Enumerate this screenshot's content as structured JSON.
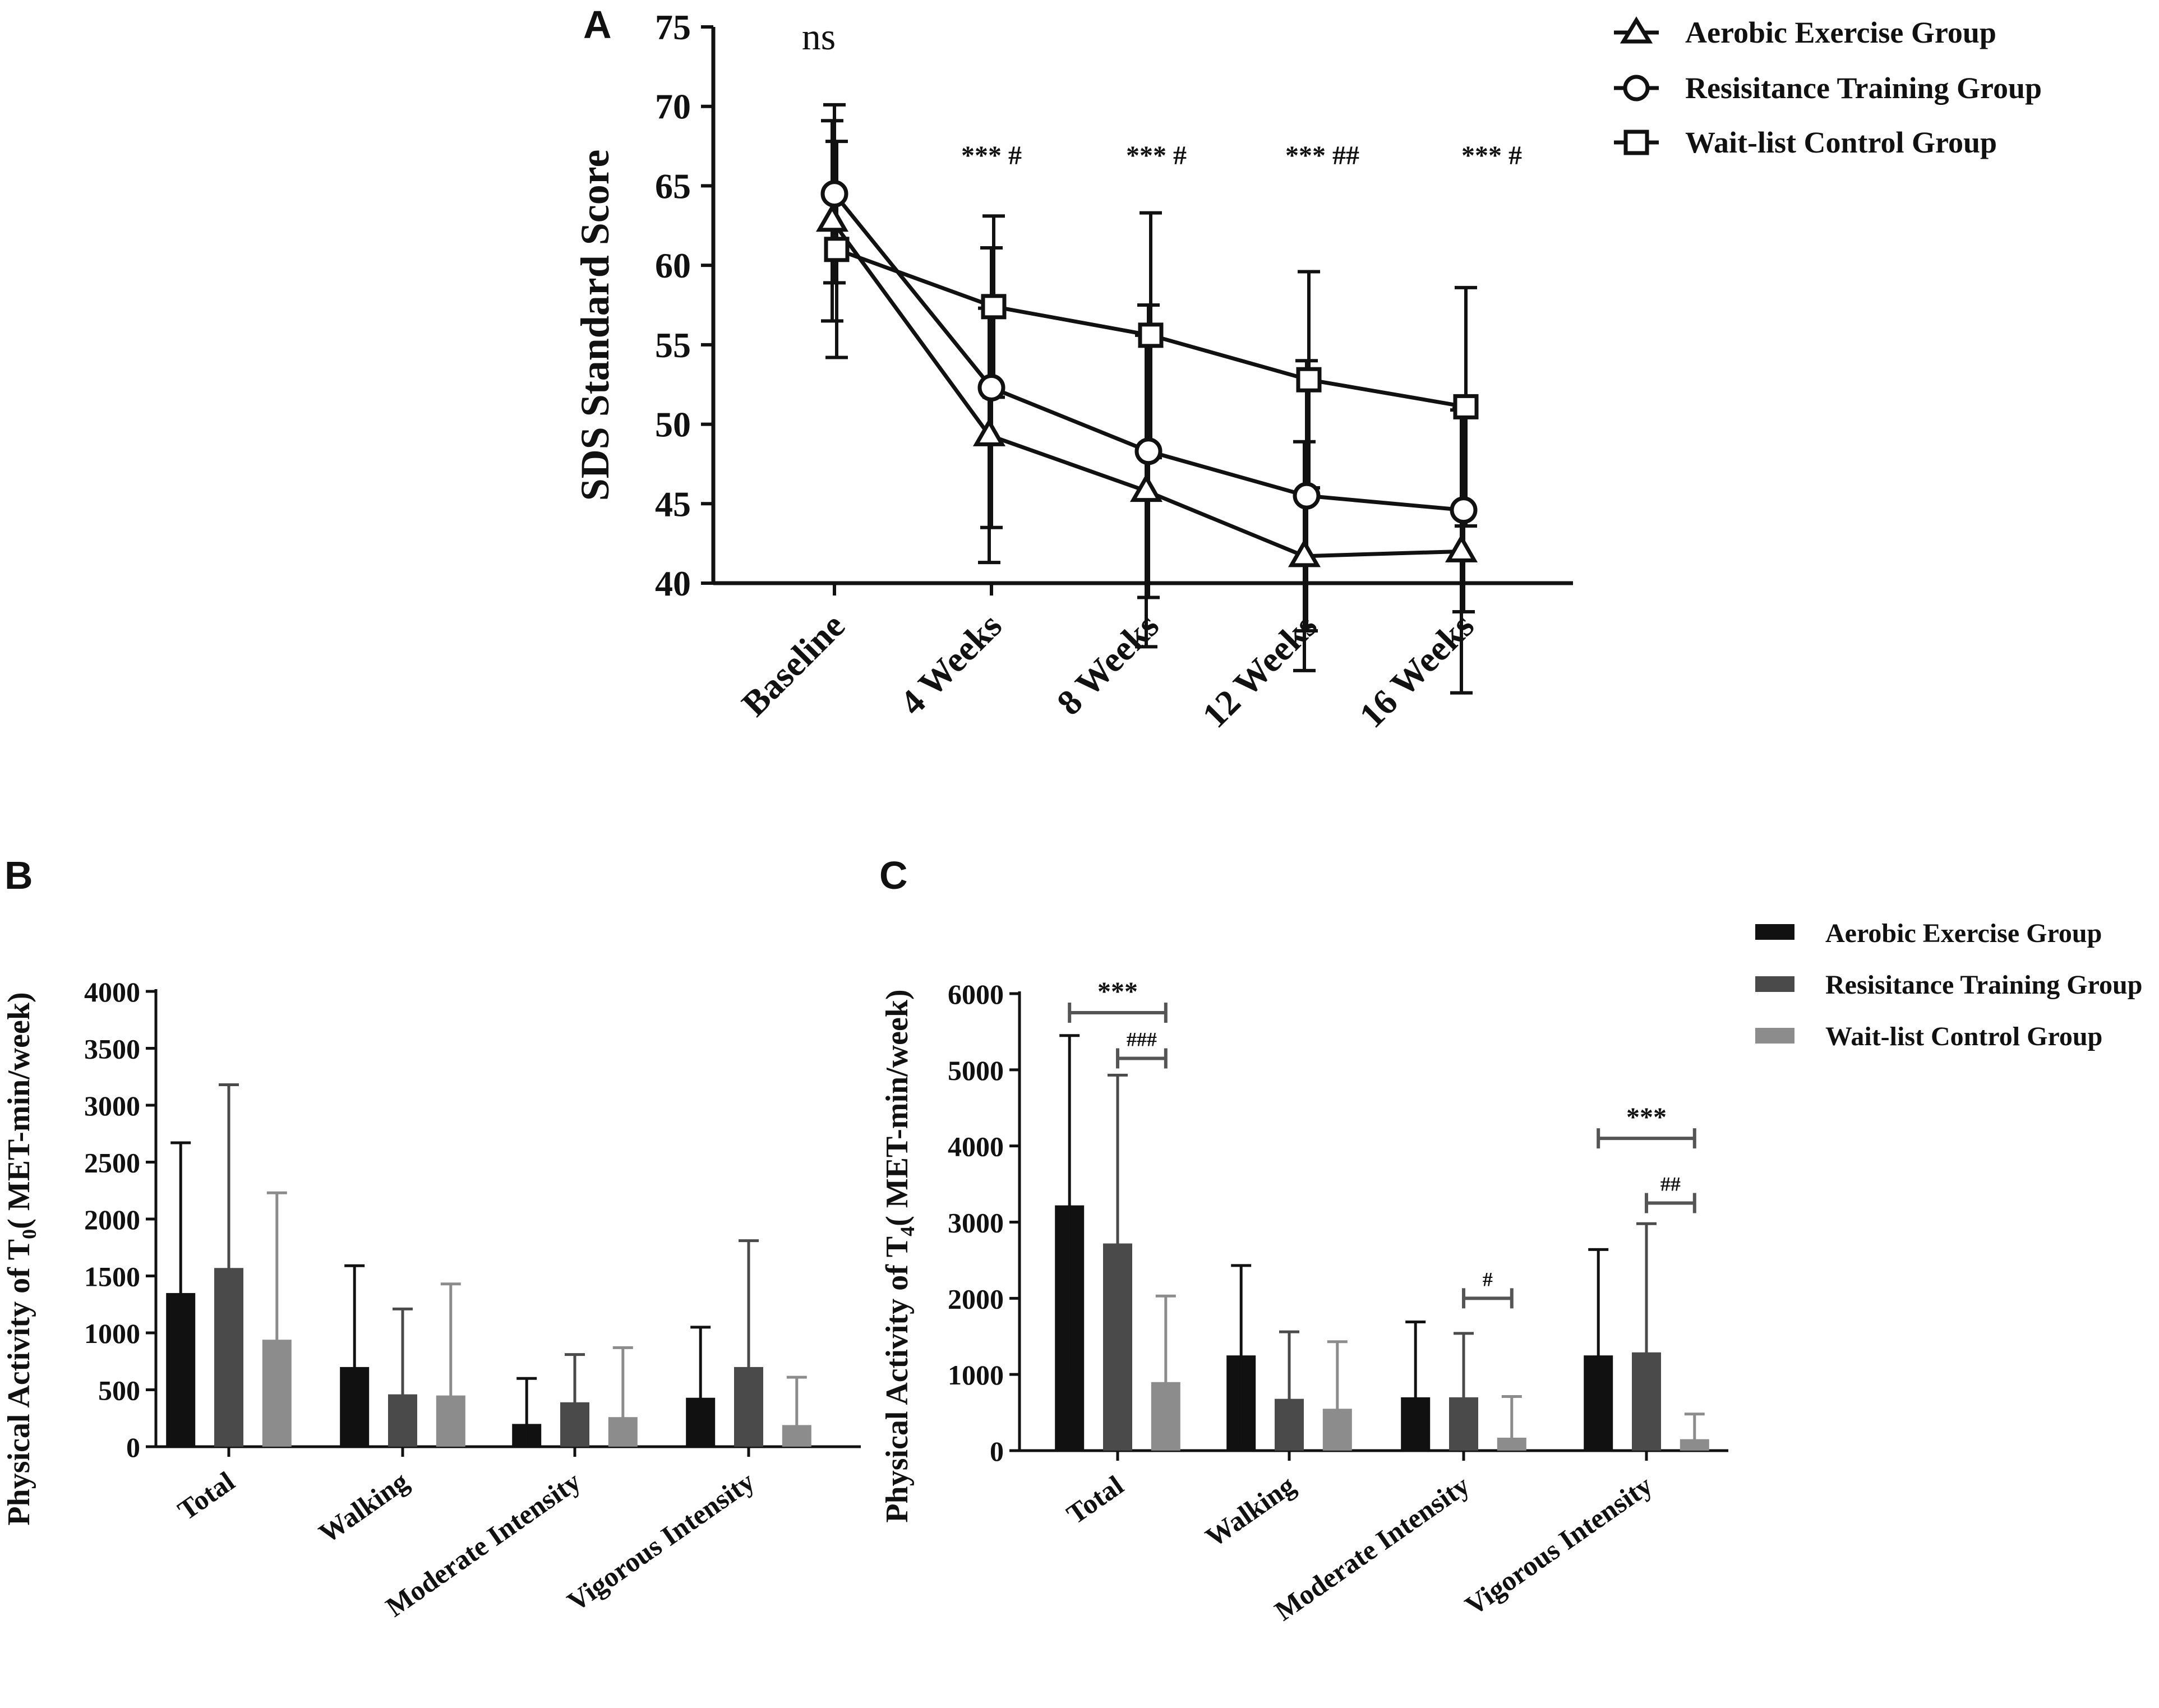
{
  "chart_data": [
    {
      "panel": "A",
      "type": "line",
      "ylabel": "SDS Standard Score",
      "xlabel": "",
      "ylim": [
        40,
        75
      ],
      "yticks": [
        "40",
        "45",
        "50",
        "55",
        "60",
        "65",
        "70",
        "75"
      ],
      "categories": [
        "Baseline",
        "4 Weeks",
        "8 Weeks",
        "12 Weeks",
        "16 Weeks"
      ],
      "series": [
        {
          "name": "Aerobic Exercise Group",
          "marker": "triangle",
          "values": [
            62.8,
            49.3,
            45.8,
            41.7,
            42.0
          ],
          "errors": [
            6.3,
            8.0,
            9.8,
            7.2,
            8.9
          ]
        },
        {
          "name": "Resisitance Training Group",
          "marker": "circle",
          "values": [
            64.5,
            52.3,
            48.3,
            45.5,
            44.6
          ],
          "errors": [
            5.6,
            8.8,
            9.2,
            8.5,
            6.4
          ]
        },
        {
          "name": "Wait-list Control Group",
          "marker": "square",
          "values": [
            61.0,
            57.4,
            55.6,
            52.8,
            51.1
          ],
          "errors": [
            6.8,
            5.7,
            7.7,
            6.8,
            7.5
          ]
        }
      ],
      "annotations": [
        "ns",
        "*** #",
        "*** #",
        "*** ##",
        "*** #"
      ]
    },
    {
      "panel": "B",
      "type": "bar",
      "ylabel": "Physical Activity of T",
      "ylabel_sub": "0",
      "ylabel_unit": "( MET-min/week)",
      "ylim": [
        0,
        4000
      ],
      "yticks": [
        "0",
        "500",
        "1000",
        "1500",
        "2000",
        "2500",
        "3000",
        "3500",
        "4000"
      ],
      "categories": [
        "Total",
        "Walking",
        "Moderate Intensity",
        "Vigorous Intensity"
      ],
      "series": [
        {
          "name": "Aerobic Exercise Group",
          "color": "#111111",
          "values": [
            1350,
            700,
            200,
            430
          ],
          "errors": [
            1320,
            890,
            400,
            620
          ]
        },
        {
          "name": "Resisitance Training Group",
          "color": "#4a4a4a",
          "values": [
            1570,
            460,
            390,
            700
          ],
          "errors": [
            1610,
            750,
            420,
            1110
          ]
        },
        {
          "name": "Wait-list Control Group",
          "color": "#8c8c8c",
          "values": [
            940,
            450,
            260,
            190
          ],
          "errors": [
            1290,
            980,
            610,
            420
          ]
        }
      ]
    },
    {
      "panel": "C",
      "type": "bar",
      "ylabel": "Physical Activity of T",
      "ylabel_sub": "4",
      "ylabel_unit": "( MET-min/week)",
      "ylim": [
        0,
        6000
      ],
      "yticks": [
        "0",
        "1000",
        "2000",
        "3000",
        "4000",
        "5000",
        "6000"
      ],
      "categories": [
        "Total",
        "Walking",
        "Moderate Intensity",
        "Vigorous Intensity"
      ],
      "series": [
        {
          "name": "Aerobic Exercise Group",
          "color": "#111111",
          "values": [
            3220,
            1250,
            700,
            1250
          ],
          "errors": [
            2230,
            1180,
            990,
            1390
          ]
        },
        {
          "name": "Resisitance Training Group",
          "color": "#4a4a4a",
          "values": [
            2720,
            680,
            700,
            1290
          ],
          "errors": [
            2210,
            880,
            840,
            1690
          ]
        },
        {
          "name": "Wait-list Control Group",
          "color": "#8c8c8c",
          "values": [
            900,
            550,
            170,
            150
          ],
          "errors": [
            1130,
            880,
            540,
            330
          ]
        }
      ],
      "comparisons": [
        {
          "category": "Total",
          "from_series": 0,
          "to_series": 2,
          "level": 5750,
          "label": "***"
        },
        {
          "category": "Total",
          "from_series": 1,
          "to_series": 2,
          "level": 5150,
          "label": "###"
        },
        {
          "category": "Moderate Intensity",
          "from_series": 1,
          "to_series": 2,
          "level": 2000,
          "label": "#"
        },
        {
          "category": "Vigorous Intensity",
          "from_series": 0,
          "to_series": 2,
          "level": 4100,
          "label": "***"
        },
        {
          "category": "Vigorous Intensity",
          "from_series": 1,
          "to_series": 2,
          "level": 3250,
          "label": "##"
        }
      ]
    }
  ],
  "panel_labels": [
    "A",
    "B",
    "C"
  ],
  "legend_a": [
    "Aerobic Exercise Group",
    "Resisitance Training Group",
    "Wait-list Control Group"
  ],
  "legend_c": [
    "Aerobic Exercise Group",
    "Resisitance Training Group",
    "Wait-list Control Group"
  ]
}
